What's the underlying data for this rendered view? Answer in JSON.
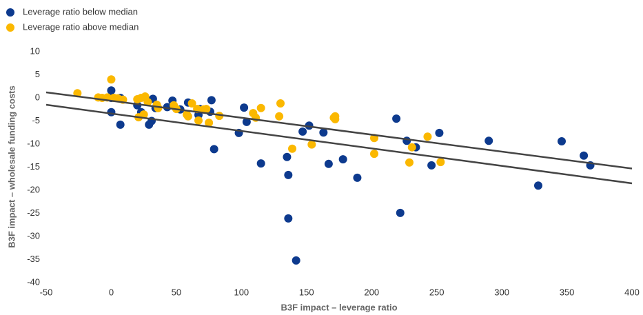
{
  "chart_data": {
    "type": "scatter",
    "xlabel": "B3F impact – leverage ratio",
    "ylabel": "B3F impact – wholesale funding costs",
    "xlim": [
      -50,
      400
    ],
    "xticks": [
      -50,
      0,
      50,
      100,
      150,
      200,
      250,
      300,
      350,
      400
    ],
    "ylim": [
      -40,
      10
    ],
    "yticks": [
      -40,
      -35,
      -30,
      -25,
      -20,
      -15,
      -10,
      -5,
      0,
      5,
      10
    ],
    "grid": false,
    "legend": "top-left",
    "series": [
      {
        "name": "Leverage ratio below median",
        "color": "#0d3a8e",
        "x": [
          0,
          0,
          0,
          7,
          7,
          20,
          23,
          29,
          31,
          32,
          34,
          43,
          47,
          53,
          59,
          67,
          68,
          76,
          77,
          79,
          98,
          102,
          104,
          115,
          135,
          136,
          136,
          142,
          147,
          152,
          163,
          167,
          178,
          189,
          219,
          222,
          227,
          234,
          246,
          252,
          290,
          328,
          346,
          363,
          368
        ],
        "y": [
          1.6,
          0,
          -3.1,
          0,
          -5.8,
          -1.6,
          -3.1,
          -5.8,
          -5,
          -0.2,
          -2.2,
          -2,
          -0.6,
          -2.5,
          -1,
          -3.7,
          -2.4,
          -3,
          -0.5,
          -11.1,
          -7.6,
          -2.1,
          -5.2,
          -14.2,
          -12.8,
          -16.7,
          -26.1,
          -35.2,
          -7.3,
          -6,
          -7.5,
          -14.3,
          -13.3,
          -17.3,
          -4.5,
          -24.9,
          -9.3,
          -10.7,
          -14.6,
          -7.6,
          -9.3,
          -19,
          -9.4,
          -12.5,
          -14.6
        ]
      },
      {
        "name": "Leverage ratio above median",
        "color": "#fbb800",
        "x": [
          -26,
          -10,
          -7,
          -3,
          0,
          2,
          5,
          9,
          20,
          23,
          26,
          25,
          21,
          28,
          35,
          36,
          48,
          50,
          58,
          59,
          62,
          66,
          67,
          71,
          73,
          75,
          83,
          109,
          111,
          115,
          129,
          130,
          139,
          154,
          171,
          172,
          172,
          202,
          202,
          229,
          231,
          243,
          253
        ],
        "y": [
          1,
          0.1,
          0,
          0.1,
          4,
          0,
          -0.1,
          -0.4,
          -0.3,
          0,
          0.3,
          -3.6,
          -4.2,
          -0.9,
          -1.5,
          -2.2,
          -1.6,
          -2.4,
          -3.6,
          -4,
          -1.2,
          -2.4,
          -4.9,
          -2.5,
          -2.4,
          -5.4,
          -3.9,
          -3.3,
          -4.3,
          -2.2,
          -4,
          -1.2,
          -11,
          -10.1,
          -4.3,
          -4.6,
          -4,
          -8.7,
          -12.1,
          -14,
          -10.7,
          -8.4,
          -13.9
        ]
      }
    ],
    "trend_lines": [
      {
        "color": "#444444",
        "x": [
          -50,
          400
        ],
        "y": [
          1.2,
          -15.3
        ]
      },
      {
        "color": "#444444",
        "x": [
          -50,
          400
        ],
        "y": [
          -1.5,
          -18.5
        ]
      }
    ]
  }
}
